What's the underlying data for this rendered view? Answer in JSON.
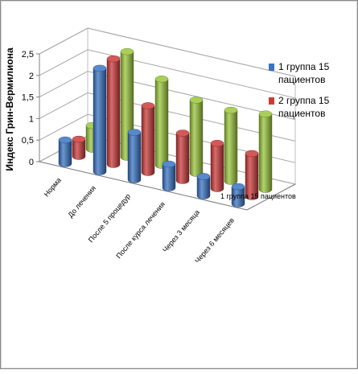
{
  "chart_data": {
    "type": "bar",
    "subtype": "3d-cylinder",
    "title": "",
    "ylabel": "Индекс Грин-Вермилиона",
    "xlabel": "",
    "ylim": [
      0,
      2.5
    ],
    "yticks": [
      "0",
      "0,5",
      "1",
      "1,5",
      "2",
      "2,5"
    ],
    "categories": [
      "Норма",
      "До лечения",
      "После 5 процедур",
      "После курса лечения",
      "Через 3 месяца",
      "Через 6 месяцев"
    ],
    "depth_labels": [
      "1 группа 15 пациентов"
    ],
    "series": [
      {
        "name": "1 группа 15 пациентов",
        "color": "#3a74c4",
        "values": [
          0.55,
          2.4,
          1.1,
          0.55,
          0.45,
          0.4
        ]
      },
      {
        "name": "2 группа 15 пациентов",
        "color": "#cc3b3b",
        "values": [
          0.4,
          2.45,
          1.55,
          1.1,
          1.05,
          1.0
        ]
      },
      {
        "name": "",
        "color": "#9ac63c",
        "values": [
          0.55,
          2.45,
          2.0,
          1.7,
          1.65,
          1.75
        ]
      }
    ],
    "legend": {
      "position": "right",
      "entries": [
        {
          "line1": "1 группа 15",
          "line2": "пациентов",
          "color": "#3a74c4"
        },
        {
          "line1": "2 группа 15",
          "line2": "пациентов",
          "color": "#cc3b3b"
        }
      ]
    },
    "grid": true
  }
}
